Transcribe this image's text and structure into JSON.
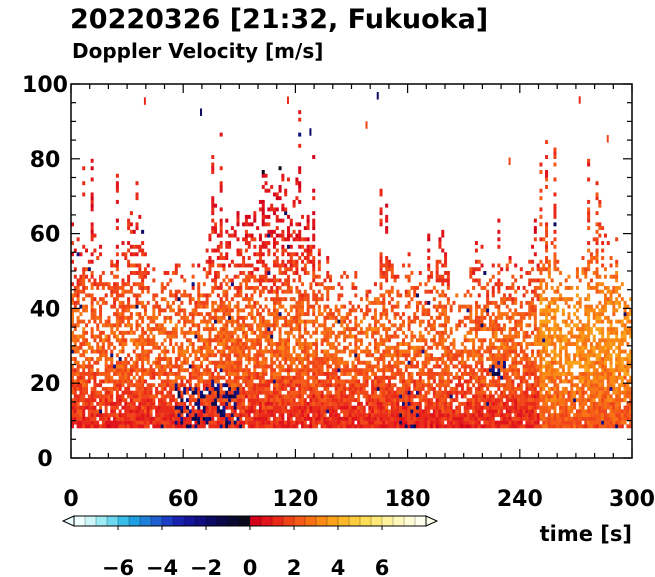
{
  "chart_data": {
    "type": "heatmap",
    "title": "20220326 [21:32, Fukuoka]",
    "subtitle": "Doppler Velocity [m/s]",
    "xlabel": "time [s]",
    "ylabel": "",
    "xlim": [
      0,
      300
    ],
    "ylim": [
      0,
      100
    ],
    "x_ticks": [
      "0",
      "60",
      "120",
      "180",
      "240",
      "300"
    ],
    "y_ticks": [
      "0",
      "20",
      "40",
      "60",
      "80",
      "100"
    ],
    "data_min_height": 8,
    "colorbar": {
      "range": [
        -8,
        8
      ],
      "tick_labels": [
        "−6",
        "−4",
        "−2",
        "0",
        "2",
        "4",
        "6"
      ],
      "extend": "both",
      "colors": [
        "#f0ffff",
        "#cdf6f8",
        "#9eecf3",
        "#6cd7ee",
        "#39bde8",
        "#1f9fe2",
        "#1f7fd8",
        "#1f5fd0",
        "#1a3fc4",
        "#1a23b0",
        "#14169a",
        "#100e80",
        "#0c0a62",
        "#0a0848",
        "#0a0a30",
        "#0a0a1a",
        "#d4001a",
        "#e0141a",
        "#ea2a18",
        "#f04418",
        "#f55a16",
        "#f87214",
        "#fa8a14",
        "#fba21a",
        "#fcb828",
        "#fdcc3c",
        "#fedd56",
        "#fee978",
        "#fff29c",
        "#fff8bc",
        "#fffcd8",
        "#ffffee"
      ]
    },
    "field_description": "Mostly positive velocities (0 to 3 m/s, red-orange) between 8 and ~70 m, with scattered negative (dark blue) patches near the surface around 60-90 s, 180 s and 230 s; sparse echoes up to ~100 m."
  }
}
